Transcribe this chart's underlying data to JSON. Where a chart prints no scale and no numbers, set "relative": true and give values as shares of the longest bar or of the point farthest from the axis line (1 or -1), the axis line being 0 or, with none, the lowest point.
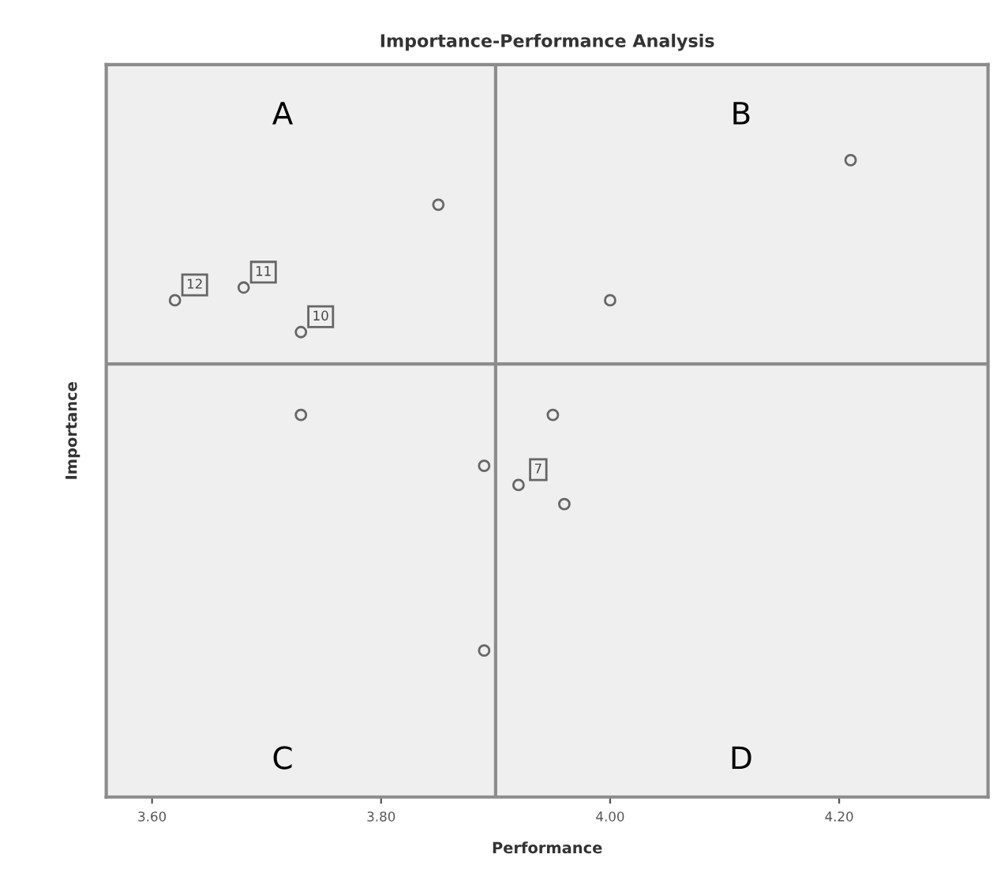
{
  "chart_data": {
    "type": "scatter",
    "title": "Importance-Performance Analysis",
    "xlabel": "Performance",
    "ylabel": "Importance",
    "relative": true,
    "x": [
      3.62,
      3.68,
      3.73,
      3.85,
      4.21,
      4.0,
      3.73,
      3.95,
      3.89,
      3.92,
      3.96,
      3.89
    ],
    "series": [
      {
        "color": "#666666",
        "values": [
          0.78,
          0.8,
          0.73,
          0.93,
          1,
          0.78,
          0.6,
          0.6,
          0.52,
          0.49,
          0.46,
          0.23
        ]
      }
    ],
    "marker": "circle",
    "xlim": [
      3.56,
      4.33
    ],
    "xticks": [
      {
        "value": 3.6,
        "label": "3.60"
      },
      {
        "value": 3.8,
        "label": "3.80"
      },
      {
        "value": 4.0,
        "label": "4.00"
      },
      {
        "value": 4.2,
        "label": "4.20"
      }
    ],
    "ref_lines": [
      {
        "axis": "x",
        "value": 3.9,
        "color": "#8c8c8c"
      },
      {
        "axis": "y",
        "value": 0.68,
        "color": "#8c8c8c"
      }
    ],
    "annotations": [
      "A",
      "B",
      "C",
      "D",
      {
        "text": "12",
        "x": 3.62,
        "y": 0.78
      },
      {
        "text": "11",
        "x": 3.68,
        "y": 0.8
      },
      {
        "text": "10",
        "x": 3.73,
        "y": 0.73
      },
      {
        "text": "7",
        "x": 3.92,
        "y": 0.49
      }
    ],
    "grid": false,
    "legend": false
  }
}
